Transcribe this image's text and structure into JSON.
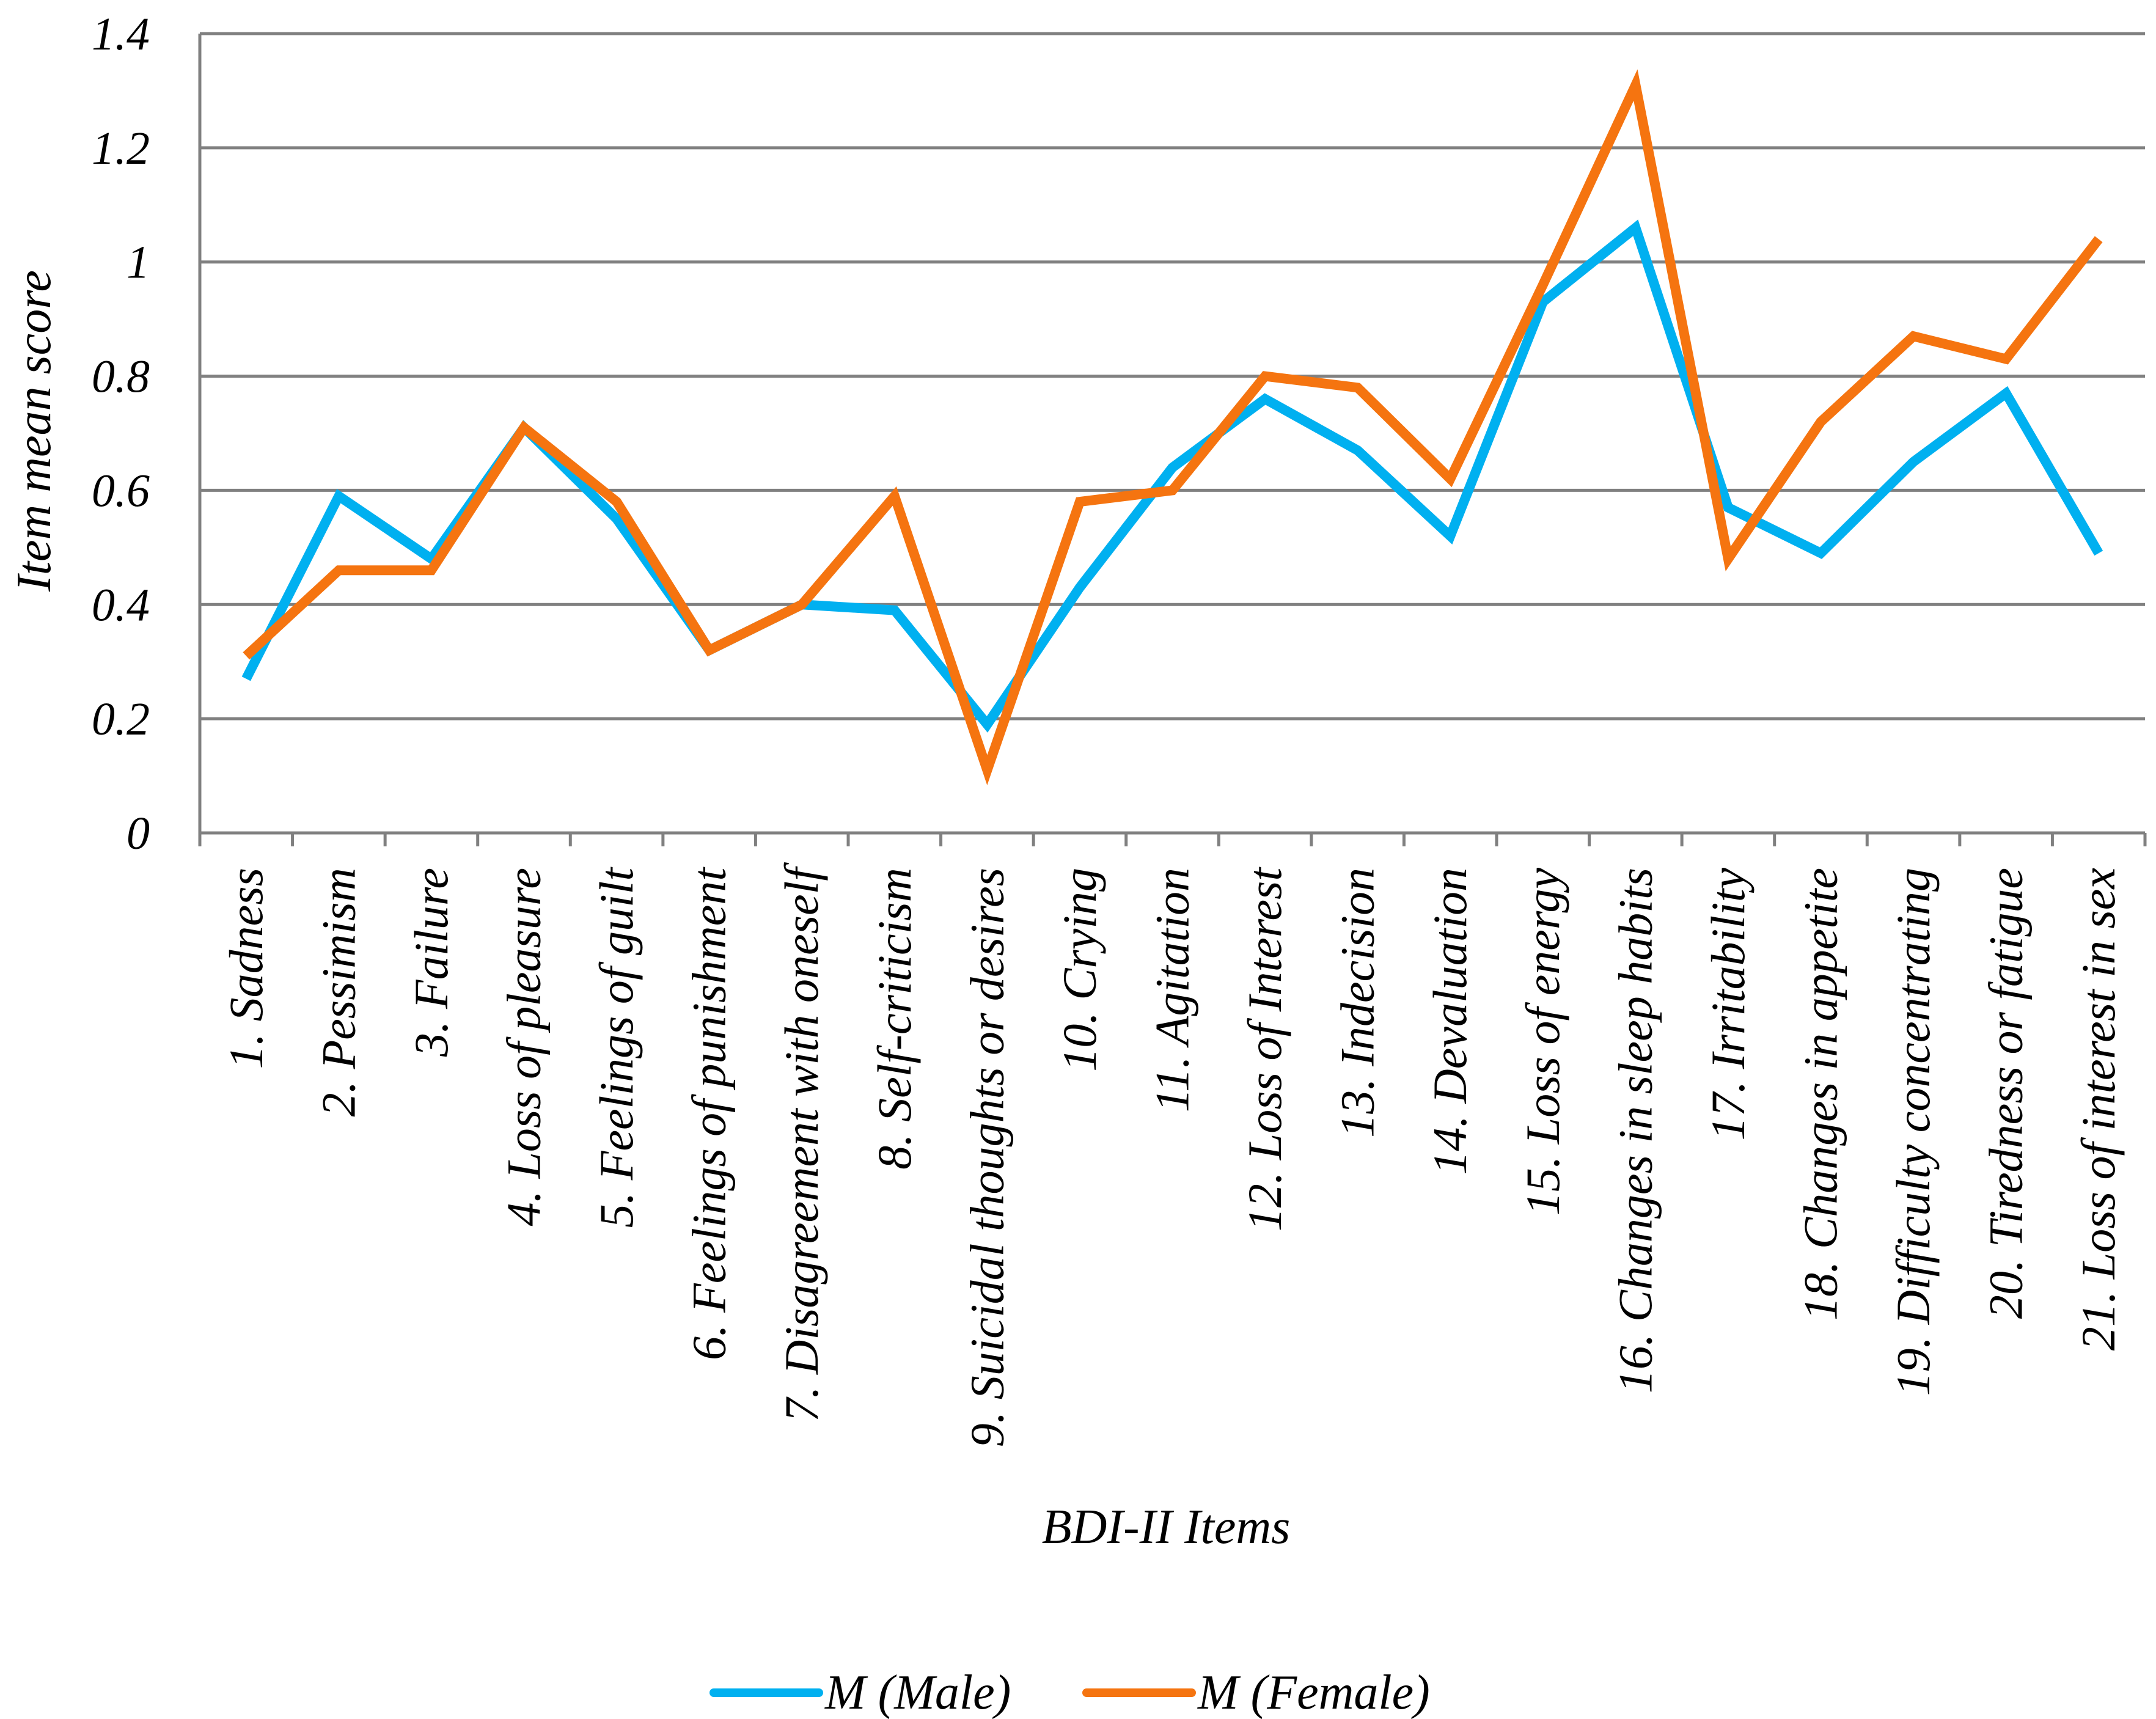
{
  "chart_data": {
    "type": "line",
    "title": "",
    "xlabel": "BDI-II Items",
    "ylabel": "Item mean score",
    "ylim": [
      0,
      1.4
    ],
    "yticks": [
      "0",
      "0.2",
      "0.4",
      "0.6",
      "0.8",
      "1",
      "1.2",
      "1.4"
    ],
    "grid": true,
    "legend_position": "bottom",
    "categories": [
      "1. Sadness",
      "2. Pessimism",
      "3. Failure",
      "4. Loss of pleasure",
      "5. Feelings of guilt",
      "6. Feelings of punishment",
      "7. Disagreement with oneself",
      "8. Self-criticism",
      "9. Suicidal thoughts or desires",
      "10. Crying",
      "11. Agitation",
      "12. Loss of Interest",
      "13. Indecision",
      "14. Devaluation",
      "15. Loss of energy",
      "16. Changes in sleep habits",
      "17. Irritability",
      "18. Changes in appetite",
      "19. Difficulty concentrating",
      "20. Tiredness or fatigue",
      "21. Loss of interest in sex"
    ],
    "series": [
      {
        "name": "M (Male)",
        "color": "#00b0f0",
        "values": [
          0.27,
          0.59,
          0.48,
          0.71,
          0.55,
          0.32,
          0.4,
          0.39,
          0.19,
          0.43,
          0.64,
          0.76,
          0.67,
          0.52,
          0.93,
          1.06,
          0.57,
          0.49,
          0.65,
          0.77,
          0.49
        ]
      },
      {
        "name": "M (Female)",
        "color": "#f57410",
        "values": [
          0.31,
          0.46,
          0.46,
          0.71,
          0.58,
          0.32,
          0.4,
          0.59,
          0.11,
          0.58,
          0.6,
          0.8,
          0.78,
          0.62,
          0.96,
          1.31,
          0.48,
          0.72,
          0.87,
          0.83,
          1.04
        ]
      }
    ]
  }
}
